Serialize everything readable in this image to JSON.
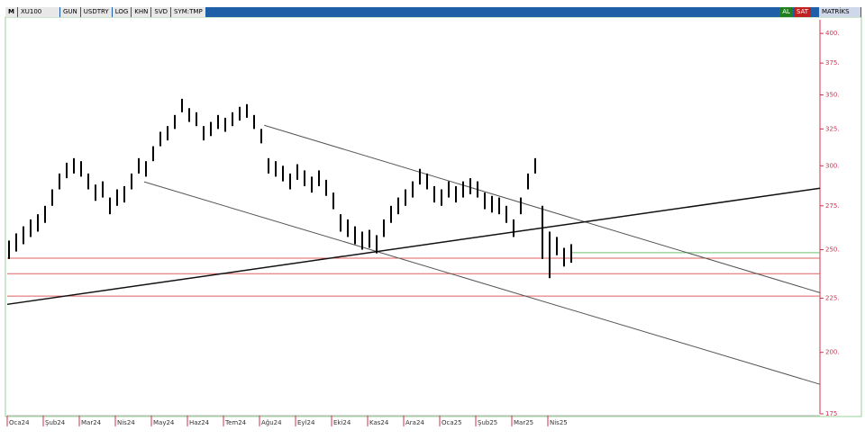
{
  "toolbar": {
    "logo": "M",
    "symbol": "XU100",
    "buttons": [
      "GUN",
      "USDTRY",
      "LOG",
      "KHN",
      "SVD",
      "SYM:TMP"
    ],
    "buy": "AL",
    "sell": "SAT",
    "brand": "MATRİKS"
  },
  "chart_data": {
    "type": "candlestick",
    "log_scale": true,
    "color": "#000000",
    "high": [
      255,
      259,
      263,
      267,
      270,
      275,
      285,
      295,
      302,
      305,
      303,
      295,
      288,
      290,
      280,
      285,
      287,
      295,
      305,
      303,
      313,
      323,
      327,
      335,
      347,
      340,
      337,
      327,
      330,
      335,
      333,
      337,
      341,
      343,
      335,
      325,
      305,
      303,
      300,
      295,
      301,
      297,
      293,
      297,
      291,
      283,
      270,
      267,
      263,
      260,
      261,
      258,
      267,
      275,
      280,
      285,
      290,
      298,
      295,
      287,
      285,
      290,
      287,
      290,
      292,
      290,
      283,
      281,
      280,
      275,
      267,
      280,
      295,
      305,
      275,
      260,
      257,
      251,
      253
    ],
    "low": [
      245,
      249,
      253,
      257,
      260,
      265,
      275,
      285,
      292,
      295,
      293,
      285,
      278,
      280,
      270,
      275,
      277,
      285,
      295,
      293,
      303,
      313,
      317,
      325,
      337,
      330,
      327,
      317,
      320,
      325,
      323,
      327,
      331,
      333,
      325,
      315,
      295,
      293,
      290,
      285,
      291,
      287,
      283,
      287,
      281,
      273,
      260,
      257,
      253,
      250,
      251,
      248,
      257,
      265,
      270,
      275,
      280,
      288,
      285,
      277,
      275,
      280,
      277,
      280,
      282,
      280,
      273,
      271,
      270,
      265,
      257,
      270,
      285,
      295,
      245,
      235,
      247,
      241,
      243
    ],
    "xlim": [
      -0.25,
      112.5
    ],
    "xticks": [
      {
        "value": 1,
        "label": "Oca24"
      },
      {
        "value": 6,
        "label": "Şub24"
      },
      {
        "value": 11,
        "label": "Mar24"
      },
      {
        "value": 16,
        "label": "Nis24"
      },
      {
        "value": 21,
        "label": "May24"
      },
      {
        "value": 26,
        "label": "Haz24"
      },
      {
        "value": 31,
        "label": "Tem24"
      },
      {
        "value": 36,
        "label": "Ağu24"
      },
      {
        "value": 41,
        "label": "Eyl24"
      },
      {
        "value": 46,
        "label": "Eki24"
      },
      {
        "value": 51,
        "label": "Kas24"
      },
      {
        "value": 56,
        "label": "Ara24"
      },
      {
        "value": 61,
        "label": "Oca25"
      },
      {
        "value": 66,
        "label": "Şub25"
      },
      {
        "value": 71,
        "label": "Mar25"
      },
      {
        "value": 76,
        "label": "Nis25"
      }
    ],
    "ylim": [
      175,
      412
    ],
    "yticks": [
      {
        "value": 175,
        "label": "175"
      },
      {
        "value": 200,
        "label": "200."
      },
      {
        "value": 225,
        "label": "225."
      },
      {
        "value": 250,
        "label": "250."
      },
      {
        "value": 275,
        "label": "275."
      },
      {
        "value": 300,
        "label": "300."
      },
      {
        "value": 325,
        "label": "325."
      },
      {
        "value": 350,
        "label": "350."
      },
      {
        "value": 375,
        "label": "375."
      },
      {
        "value": 400,
        "label": "400."
      }
    ],
    "axis_color": "#d03050",
    "hlines": [
      {
        "value": 245.4,
        "color": "#e06060"
      },
      {
        "value": 237.3,
        "color": "#e06060"
      },
      {
        "value": 226,
        "color": "#e06060"
      },
      {
        "value": 248.4,
        "color": "#70c070",
        "xstart": 78
      }
    ],
    "trendlines": [
      {
        "x": [
          35.4,
          112.5
        ],
        "y": [
          327.6,
          227.7
        ],
        "color": "#555555"
      },
      {
        "x": [
          18.75,
          112.5
        ],
        "y": [
          289.7,
          186.6
        ],
        "color": "#555555"
      },
      {
        "x": [
          -0.25,
          112.5
        ],
        "y": [
          222,
          285.7
        ],
        "color": "#111111"
      }
    ]
  }
}
